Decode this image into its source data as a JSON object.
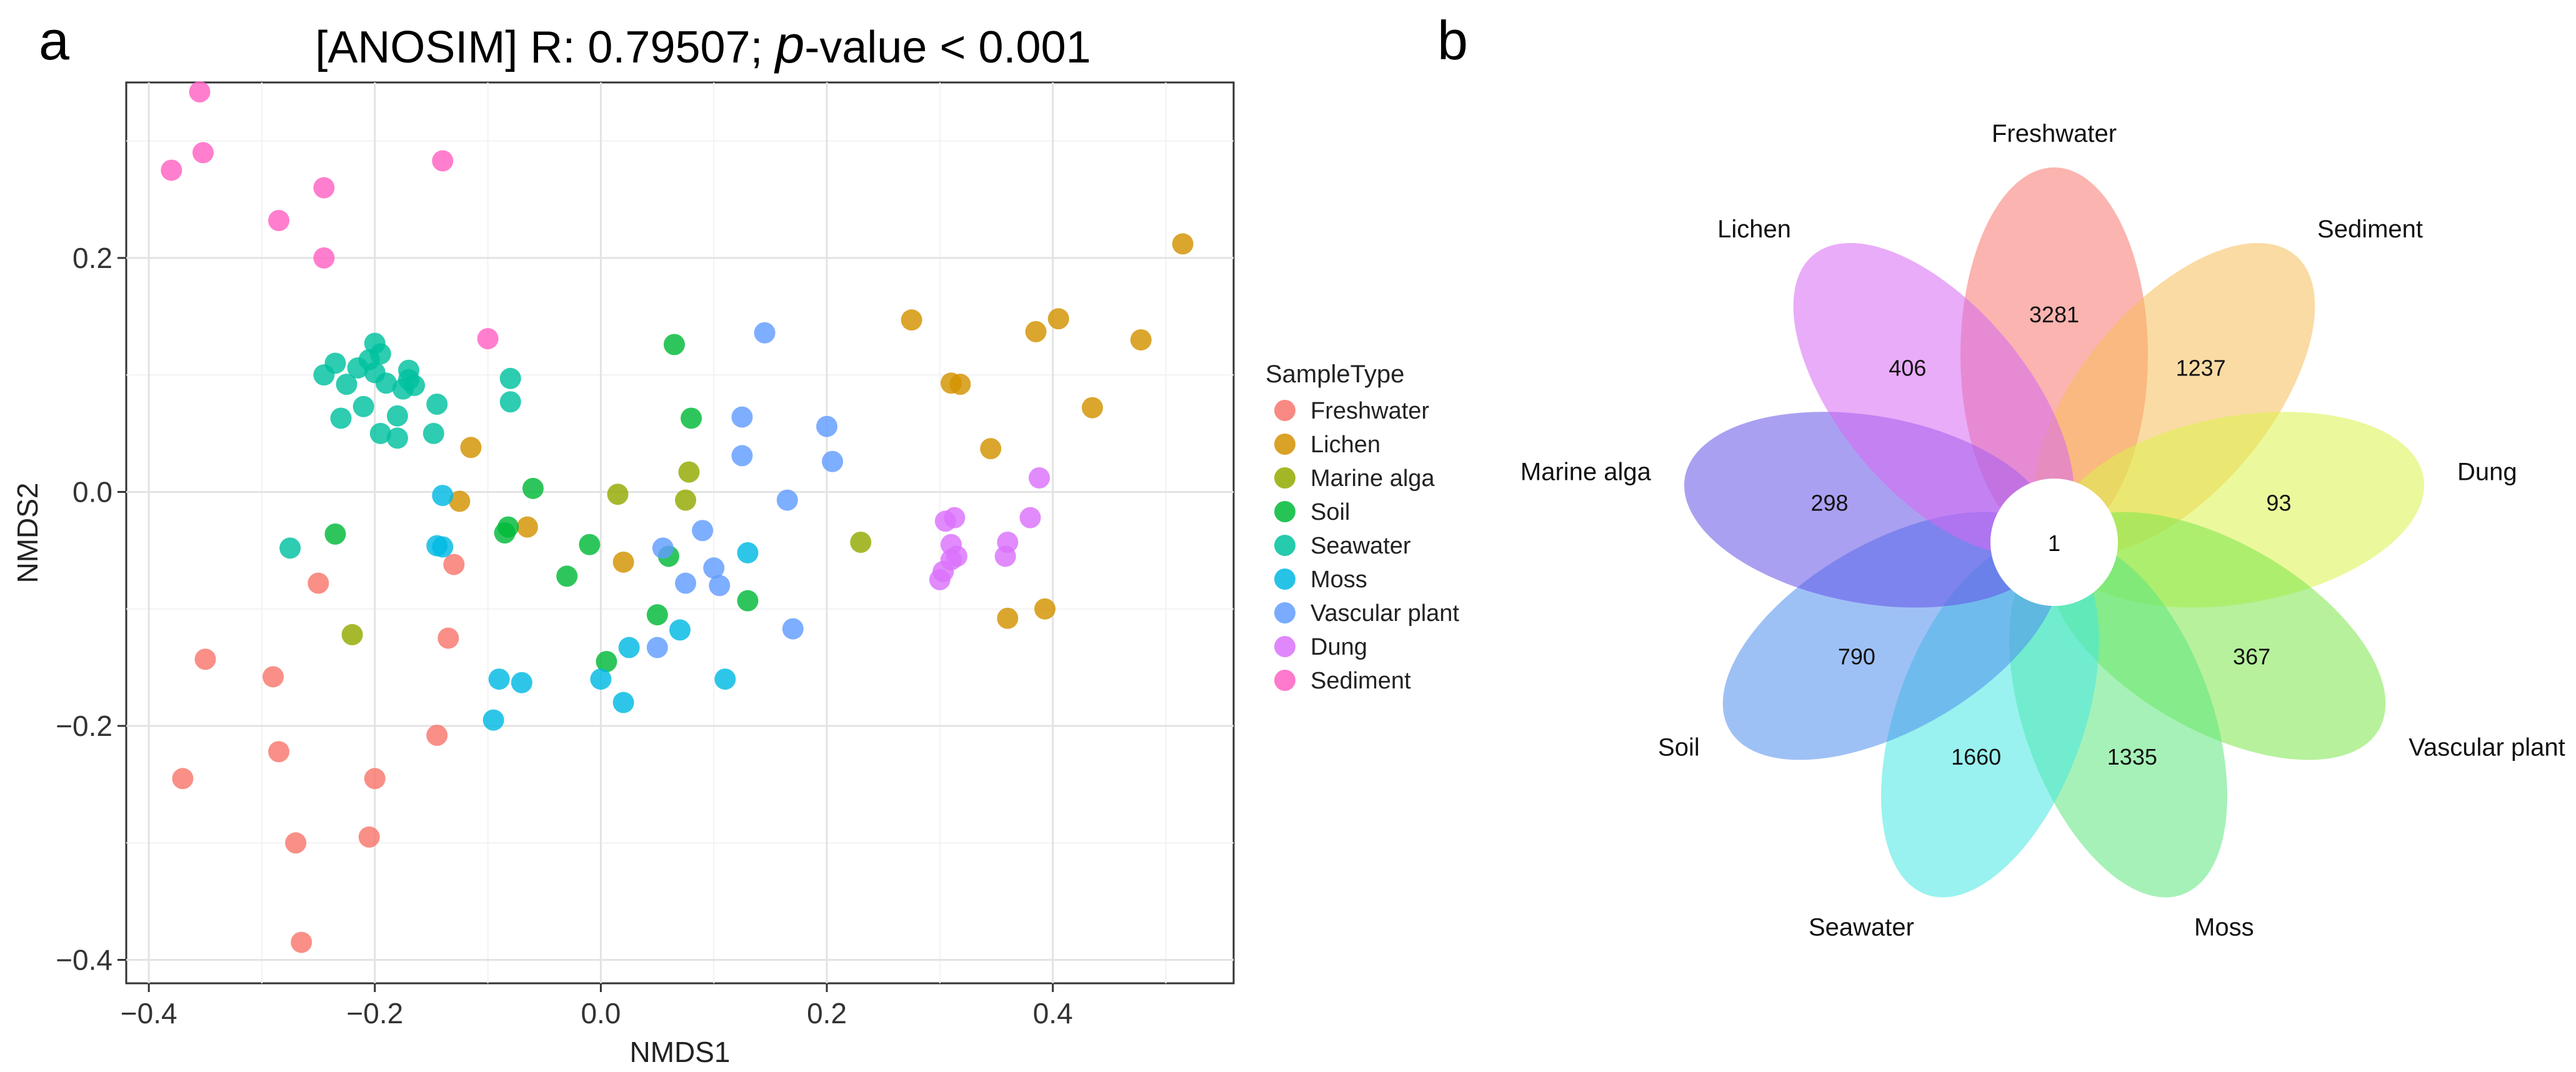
{
  "panel_labels": {
    "a": "a",
    "b": "b"
  },
  "chart_data": [
    {
      "type": "scatter",
      "title_prefix": "[ANOSIM] R: 0.79507; ",
      "title_p": "p",
      "title_suffix": "-value < 0.001",
      "xlabel": "NMDS1",
      "ylabel": "NMDS2",
      "xlim": [
        -0.42,
        0.56
      ],
      "ylim": [
        -0.42,
        0.35
      ],
      "xticks": [
        -0.4,
        -0.2,
        0.0,
        0.2,
        0.4
      ],
      "xtick_labels": [
        "−0.4",
        "−0.2",
        "0.0",
        "0.2",
        "0.4"
      ],
      "yticks": [
        -0.4,
        -0.2,
        0.0,
        0.2
      ],
      "ytick_labels": [
        "−0.4",
        "−0.2",
        "0.0",
        "0.2"
      ],
      "grid": true,
      "legend_title": "SampleType",
      "legend_position": "right",
      "series": [
        {
          "name": "Freshwater",
          "color": "#F8766D",
          "points": [
            [
              -0.37,
              -0.245
            ],
            [
              -0.35,
              -0.143
            ],
            [
              -0.29,
              -0.158
            ],
            [
              -0.285,
              -0.222
            ],
            [
              -0.27,
              -0.3
            ],
            [
              -0.265,
              -0.385
            ],
            [
              -0.25,
              -0.078
            ],
            [
              -0.205,
              -0.295
            ],
            [
              -0.2,
              -0.245
            ],
            [
              -0.145,
              -0.208
            ],
            [
              -0.135,
              -0.125
            ],
            [
              -0.13,
              -0.062
            ]
          ]
        },
        {
          "name": "Lichen",
          "color": "#D39200",
          "points": [
            [
              -0.115,
              0.038
            ],
            [
              -0.125,
              -0.008
            ],
            [
              -0.065,
              -0.03
            ],
            [
              0.02,
              -0.06
            ],
            [
              0.275,
              0.147
            ],
            [
              0.31,
              0.093
            ],
            [
              0.318,
              0.092
            ],
            [
              0.345,
              0.037
            ],
            [
              0.36,
              -0.108
            ],
            [
              0.385,
              0.137
            ],
            [
              0.393,
              -0.1
            ],
            [
              0.405,
              0.148
            ],
            [
              0.435,
              0.072
            ],
            [
              0.478,
              0.13
            ],
            [
              0.515,
              0.212
            ]
          ]
        },
        {
          "name": "Marine alga",
          "color": "#93AA00",
          "points": [
            [
              -0.22,
              -0.122
            ],
            [
              0.015,
              -0.002
            ],
            [
              0.075,
              -0.007
            ],
            [
              0.078,
              0.017
            ],
            [
              0.23,
              -0.043
            ]
          ]
        },
        {
          "name": "Soil",
          "color": "#00BA38",
          "points": [
            [
              -0.235,
              -0.036
            ],
            [
              -0.085,
              -0.035
            ],
            [
              -0.082,
              -0.03
            ],
            [
              -0.06,
              0.003
            ],
            [
              -0.03,
              -0.072
            ],
            [
              -0.01,
              -0.045
            ],
            [
              0.005,
              -0.145
            ],
            [
              0.05,
              -0.105
            ],
            [
              0.06,
              -0.055
            ],
            [
              0.065,
              0.126
            ],
            [
              0.08,
              0.063
            ],
            [
              0.13,
              -0.093
            ]
          ]
        },
        {
          "name": "Seawater",
          "color": "#00C19F",
          "points": [
            [
              -0.275,
              -0.048
            ],
            [
              -0.245,
              0.1
            ],
            [
              -0.235,
              0.11
            ],
            [
              -0.23,
              0.063
            ],
            [
              -0.225,
              0.092
            ],
            [
              -0.215,
              0.106
            ],
            [
              -0.21,
              0.073
            ],
            [
              -0.205,
              0.113
            ],
            [
              -0.2,
              0.102
            ],
            [
              -0.2,
              0.127
            ],
            [
              -0.195,
              0.118
            ],
            [
              -0.195,
              0.05
            ],
            [
              -0.19,
              0.093
            ],
            [
              -0.18,
              0.046
            ],
            [
              -0.18,
              0.065
            ],
            [
              -0.175,
              0.088
            ],
            [
              -0.17,
              0.104
            ],
            [
              -0.17,
              0.096
            ],
            [
              -0.165,
              0.091
            ],
            [
              -0.148,
              0.05
            ],
            [
              -0.145,
              0.075
            ],
            [
              -0.08,
              0.097
            ],
            [
              -0.08,
              0.077
            ]
          ]
        },
        {
          "name": "Moss",
          "color": "#00B9E3",
          "points": [
            [
              -0.145,
              -0.046
            ],
            [
              -0.14,
              -0.047
            ],
            [
              -0.14,
              -0.003
            ],
            [
              -0.095,
              -0.195
            ],
            [
              -0.09,
              -0.16
            ],
            [
              -0.07,
              -0.163
            ],
            [
              0.0,
              -0.16
            ],
            [
              0.02,
              -0.18
            ],
            [
              0.025,
              -0.133
            ],
            [
              0.07,
              -0.118
            ],
            [
              0.11,
              -0.16
            ],
            [
              0.13,
              -0.052
            ]
          ]
        },
        {
          "name": "Vascular plant",
          "color": "#619CFF",
          "points": [
            [
              0.05,
              -0.133
            ],
            [
              0.055,
              -0.048
            ],
            [
              0.075,
              -0.078
            ],
            [
              0.09,
              -0.033
            ],
            [
              0.1,
              -0.065
            ],
            [
              0.105,
              -0.08
            ],
            [
              0.125,
              0.064
            ],
            [
              0.125,
              0.031
            ],
            [
              0.145,
              0.136
            ],
            [
              0.165,
              -0.007
            ],
            [
              0.17,
              -0.117
            ],
            [
              0.2,
              0.056
            ],
            [
              0.205,
              0.026
            ]
          ]
        },
        {
          "name": "Dung",
          "color": "#DB72FB",
          "points": [
            [
              0.3,
              -0.075
            ],
            [
              0.303,
              -0.068
            ],
            [
              0.305,
              -0.025
            ],
            [
              0.31,
              -0.045
            ],
            [
              0.31,
              -0.058
            ],
            [
              0.313,
              -0.022
            ],
            [
              0.315,
              -0.055
            ],
            [
              0.358,
              -0.055
            ],
            [
              0.36,
              -0.043
            ],
            [
              0.38,
              -0.022
            ],
            [
              0.388,
              0.012
            ]
          ]
        },
        {
          "name": "Sediment",
          "color": "#FF61C3",
          "points": [
            [
              -0.38,
              0.275
            ],
            [
              -0.355,
              0.342
            ],
            [
              -0.352,
              0.29
            ],
            [
              -0.285,
              0.232
            ],
            [
              -0.245,
              0.26
            ],
            [
              -0.245,
              0.2
            ],
            [
              -0.14,
              0.283
            ],
            [
              -0.1,
              0.131
            ]
          ]
        }
      ]
    },
    {
      "type": "venn-flower",
      "center_value": "1",
      "petals": [
        {
          "name": "Freshwater",
          "value": "3281",
          "color": "#F8766D",
          "angle": 0
        },
        {
          "name": "Sediment",
          "value": "1237",
          "color": "#F8BE5A",
          "angle": 40
        },
        {
          "name": "Dung",
          "value": "93",
          "color": "#DDF24A",
          "angle": 80
        },
        {
          "name": "Vascular plant",
          "value": "367",
          "color": "#7CE54A",
          "angle": 120
        },
        {
          "name": "Moss",
          "value": "1335",
          "color": "#5DE57E",
          "angle": 160
        },
        {
          "name": "Seawater",
          "value": "1660",
          "color": "#45E8E2",
          "angle": 200
        },
        {
          "name": "Soil",
          "value": "790",
          "color": "#4F8EEC",
          "angle": 240
        },
        {
          "name": "Marine alga",
          "value": "298",
          "color": "#6552E6",
          "angle": 280
        },
        {
          "name": "Lichen",
          "value": "406",
          "color": "#D768F2",
          "angle": 320
        }
      ]
    }
  ]
}
